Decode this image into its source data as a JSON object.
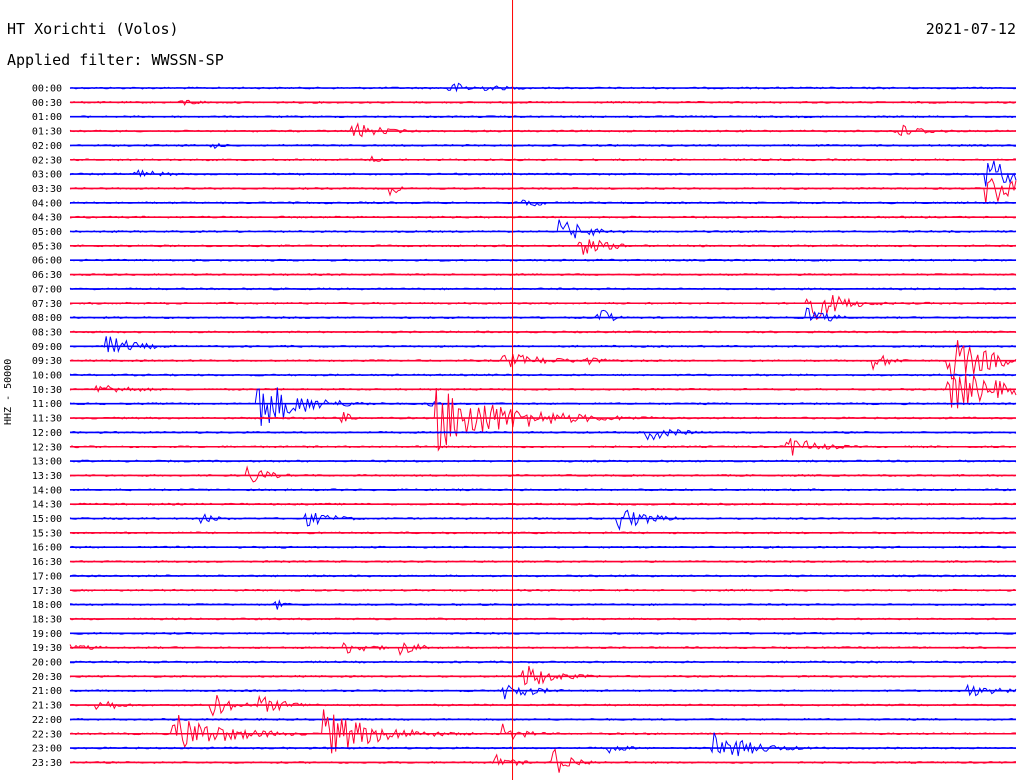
{
  "header": {
    "station": "HT Xorichti (Volos)",
    "date": "2021-07-12",
    "filter": "Applied filter: WWSSN-SP"
  },
  "axis_label": "HHZ - 50000",
  "colors": {
    "odd_rows": "#0000ff",
    "even_rows": "#ff0033",
    "marker": "#ff0000",
    "text": "#000000"
  },
  "chart_data": {
    "type": "helicorder",
    "title": "HT Xorichti (Volos)",
    "ylabel": "HHZ - 50000",
    "row_labels": [
      "00:00",
      "00:30",
      "01:00",
      "01:30",
      "02:00",
      "02:30",
      "03:00",
      "03:30",
      "04:00",
      "04:30",
      "05:00",
      "05:30",
      "06:00",
      "06:30",
      "07:00",
      "07:30",
      "08:00",
      "08:30",
      "09:00",
      "09:30",
      "10:00",
      "10:30",
      "11:00",
      "11:30",
      "12:00",
      "12:30",
      "13:00",
      "13:30",
      "14:00",
      "14:30",
      "15:00",
      "15:30",
      "16:00",
      "16:30",
      "17:00",
      "17:30",
      "18:00",
      "18:30",
      "19:00",
      "19:30",
      "20:00",
      "20:30",
      "21:00",
      "21:30",
      "22:00",
      "22:30",
      "23:00",
      "23:30"
    ],
    "row_minutes": 30,
    "time_marker": 0.4678,
    "events": [
      {
        "row": 0,
        "t": 0.4,
        "amp": 6,
        "dur": 0.05
      },
      {
        "row": 1,
        "t": 0.12,
        "amp": 4,
        "dur": 0.02
      },
      {
        "row": 3,
        "t": 0.3,
        "amp": 9,
        "dur": 0.03
      },
      {
        "row": 3,
        "t": 0.87,
        "amp": 9,
        "dur": 0.03
      },
      {
        "row": 4,
        "t": 0.15,
        "amp": 5,
        "dur": 0.01
      },
      {
        "row": 5,
        "t": 0.32,
        "amp": 4,
        "dur": 0.01
      },
      {
        "row": 6,
        "t": 0.07,
        "amp": 5,
        "dur": 0.03
      },
      {
        "row": 6,
        "t": 0.97,
        "amp": 18,
        "dur": 0.03
      },
      {
        "row": 7,
        "t": 0.34,
        "amp": 7,
        "dur": 0.01
      },
      {
        "row": 7,
        "t": 0.97,
        "amp": 22,
        "dur": 0.03
      },
      {
        "row": 8,
        "t": 0.48,
        "amp": 6,
        "dur": 0.02
      },
      {
        "row": 10,
        "t": 0.52,
        "amp": 12,
        "dur": 0.03
      },
      {
        "row": 11,
        "t": 0.54,
        "amp": 10,
        "dur": 0.03
      },
      {
        "row": 15,
        "t": 0.78,
        "amp": 22,
        "dur": 0.03
      },
      {
        "row": 16,
        "t": 0.56,
        "amp": 14,
        "dur": 0.01
      },
      {
        "row": 16,
        "t": 0.78,
        "amp": 12,
        "dur": 0.02
      },
      {
        "row": 18,
        "t": 0.04,
        "amp": 11,
        "dur": 0.03
      },
      {
        "row": 19,
        "t": 0.46,
        "amp": 8,
        "dur": 0.05
      },
      {
        "row": 19,
        "t": 0.54,
        "amp": 6,
        "dur": 0.02
      },
      {
        "row": 19,
        "t": 0.85,
        "amp": 9,
        "dur": 0.02
      },
      {
        "row": 19,
        "t": 0.93,
        "amp": 26,
        "dur": 0.04
      },
      {
        "row": 21,
        "t": 0.03,
        "amp": 6,
        "dur": 0.04
      },
      {
        "row": 21,
        "t": 0.93,
        "amp": 24,
        "dur": 0.05
      },
      {
        "row": 22,
        "t": 0.2,
        "amp": 28,
        "dur": 0.04
      },
      {
        "row": 22,
        "t": 0.38,
        "amp": 5,
        "dur": 0.01
      },
      {
        "row": 23,
        "t": 0.39,
        "amp": 34,
        "dur": 0.07
      },
      {
        "row": 23,
        "t": 0.29,
        "amp": 6,
        "dur": 0.01
      },
      {
        "row": 24,
        "t": 0.61,
        "amp": 9,
        "dur": 0.03
      },
      {
        "row": 25,
        "t": 0.76,
        "amp": 11,
        "dur": 0.03
      },
      {
        "row": 27,
        "t": 0.19,
        "amp": 10,
        "dur": 0.02
      },
      {
        "row": 30,
        "t": 0.14,
        "amp": 5,
        "dur": 0.02
      },
      {
        "row": 30,
        "t": 0.25,
        "amp": 8,
        "dur": 0.03
      },
      {
        "row": 30,
        "t": 0.58,
        "amp": 13,
        "dur": 0.03
      },
      {
        "row": 36,
        "t": 0.22,
        "amp": 5,
        "dur": 0.01
      },
      {
        "row": 39,
        "t": 0.0,
        "amp": 4,
        "dur": 0.03
      },
      {
        "row": 39,
        "t": 0.29,
        "amp": 7,
        "dur": 0.03
      },
      {
        "row": 39,
        "t": 0.35,
        "amp": 8,
        "dur": 0.02
      },
      {
        "row": 41,
        "t": 0.48,
        "amp": 14,
        "dur": 0.03
      },
      {
        "row": 42,
        "t": 0.46,
        "amp": 10,
        "dur": 0.03
      },
      {
        "row": 42,
        "t": 0.95,
        "amp": 6,
        "dur": 0.04
      },
      {
        "row": 43,
        "t": 0.03,
        "amp": 8,
        "dur": 0.02
      },
      {
        "row": 43,
        "t": 0.15,
        "amp": 14,
        "dur": 0.02
      },
      {
        "row": 43,
        "t": 0.2,
        "amp": 10,
        "dur": 0.03
      },
      {
        "row": 45,
        "t": 0.11,
        "amp": 22,
        "dur": 0.05
      },
      {
        "row": 45,
        "t": 0.27,
        "amp": 25,
        "dur": 0.05
      },
      {
        "row": 45,
        "t": 0.46,
        "amp": 10,
        "dur": 0.02
      },
      {
        "row": 46,
        "t": 0.57,
        "amp": 5,
        "dur": 0.02
      },
      {
        "row": 46,
        "t": 0.68,
        "amp": 16,
        "dur": 0.04
      },
      {
        "row": 47,
        "t": 0.45,
        "amp": 8,
        "dur": 0.02
      },
      {
        "row": 47,
        "t": 0.51,
        "amp": 16,
        "dur": 0.02
      }
    ]
  }
}
